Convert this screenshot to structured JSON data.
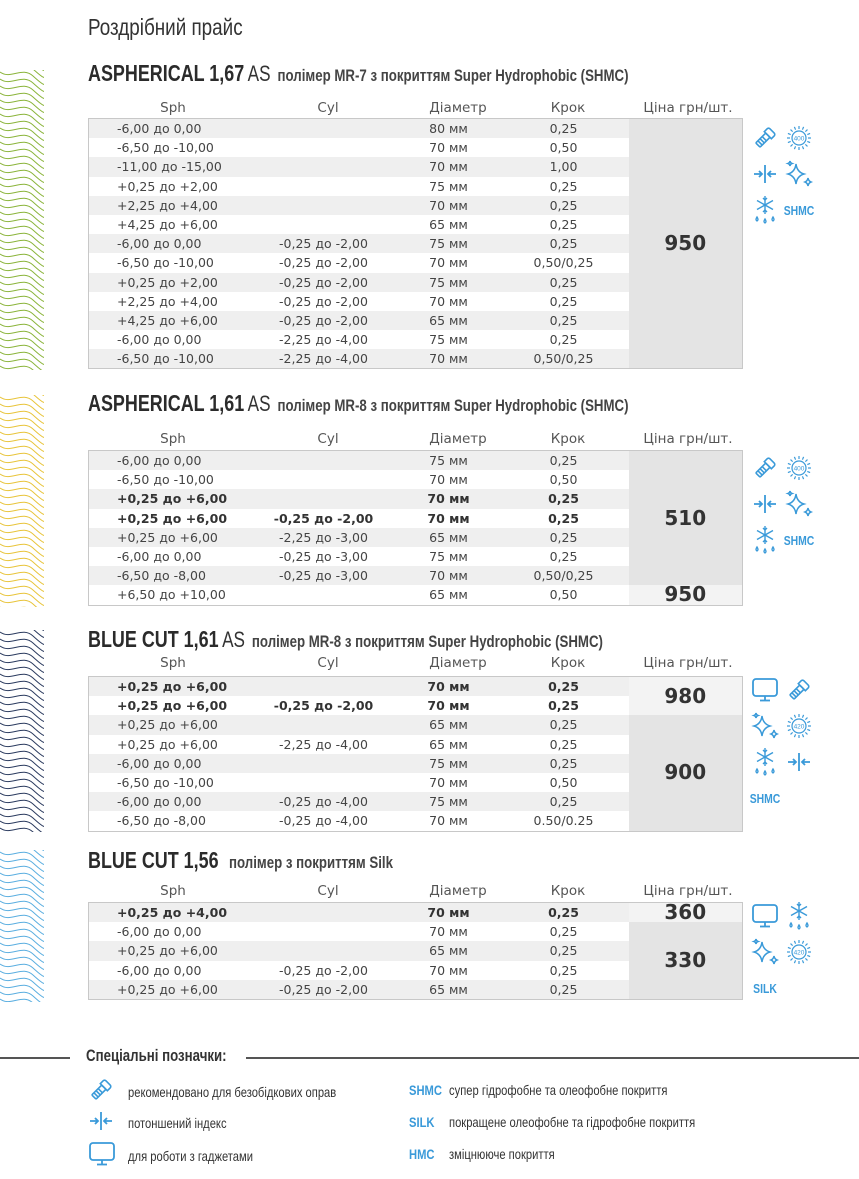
{
  "doc_title": "Роздрібний прайс",
  "columns": {
    "sph": "Sph",
    "cyl": "Cyl",
    "diam": "Діаметр",
    "step": "Крок",
    "price": "Ціна грн/шт."
  },
  "colors": {
    "accent": "#3a9ad9",
    "waves": [
      "#8ab43a",
      "#e8c43a",
      "#2a3a5e",
      "#5aaee0"
    ]
  },
  "sections": [
    {
      "name": "ASPHERICAL 1,67",
      "index": "AS",
      "desc": "полімер MR-7 з покриттям Super Hydrophobic (SHMC)",
      "rows": [
        {
          "sph": "-6,00 до 0,00",
          "cyl": "",
          "diam": "80 мм",
          "step": "0,25"
        },
        {
          "sph": "-6,50 до -10,00",
          "cyl": "",
          "diam": "70 мм",
          "step": "0,50"
        },
        {
          "sph": "-11,00 до -15,00",
          "cyl": "",
          "diam": "70 мм",
          "step": "1,00"
        },
        {
          "sph": "+0,25 до +2,00",
          "cyl": "",
          "diam": "75 мм",
          "step": "0,25"
        },
        {
          "sph": "+2,25 до +4,00",
          "cyl": "",
          "diam": "70 мм",
          "step": "0,25"
        },
        {
          "sph": "+4,25 до +6,00",
          "cyl": "",
          "diam": "65 мм",
          "step": "0,25"
        },
        {
          "sph": "-6,00 до 0,00",
          "cyl": "-0,25  до -2,00",
          "diam": "75 мм",
          "step": "0,25"
        },
        {
          "sph": "-6,50 до -10,00",
          "cyl": "-0,25  до -2,00",
          "diam": "70 мм",
          "step": "0,50/0,25"
        },
        {
          "sph": "+0,25 до +2,00",
          "cyl": "-0,25  до -2,00",
          "diam": "75 мм",
          "step": "0,25"
        },
        {
          "sph": "+2,25 до +4,00",
          "cyl": "-0,25  до -2,00",
          "diam": "70 мм",
          "step": "0,25"
        },
        {
          "sph": "+4,25 до +6,00",
          "cyl": "-0,25  до -2,00",
          "diam": "65 мм",
          "step": "0,25"
        },
        {
          "sph": "-6,00 до 0,00",
          "cyl": "-2,25  до -4,00",
          "diam": "75 мм",
          "step": "0,25"
        },
        {
          "sph": "-6,50 до -10,00",
          "cyl": "-2,25  до -4,00",
          "diam": "70 мм",
          "step": "0,50/0,25"
        }
      ],
      "prices": [
        {
          "value": "950",
          "span": 13,
          "shade": "dark"
        }
      ],
      "icons": [
        "screw-icon",
        "uv400-icon",
        "thin-index-icon",
        "sparkle-icon",
        "snowflake-drops-icon",
        "SHMC"
      ]
    },
    {
      "name": "ASPHERICAL 1,61",
      "index": "AS",
      "desc": "полімер MR-8 з покриттям Super Hydrophobic (SHMC)",
      "rows": [
        {
          "sph": "-6,00 до 0,00",
          "cyl": "",
          "diam": "75 мм",
          "step": "0,25"
        },
        {
          "sph": "-6,50 до -10,00",
          "cyl": "",
          "diam": "70 мм",
          "step": "0,50"
        },
        {
          "sph": "+0,25 до +6,00",
          "cyl": "",
          "diam": "70 мм",
          "step": "0,25",
          "bold": true
        },
        {
          "sph": "+0,25 до +6,00",
          "cyl": "-0,25  до -2,00",
          "diam": "70 мм",
          "step": "0,25",
          "bold": true
        },
        {
          "sph": "+0,25 до +6,00",
          "cyl": "-2,25  до -3,00",
          "diam": "65 мм",
          "step": "0,25"
        },
        {
          "sph": "-6,00 до 0,00",
          "cyl": "-0,25  до -3,00",
          "diam": "75 мм",
          "step": "0,25"
        },
        {
          "sph": "-6,50 до -8,00",
          "cyl": "-0,25  до -3,00",
          "diam": "70 мм",
          "step": "0,50/0,25"
        },
        {
          "sph": "+6,50 до +10,00",
          "cyl": "",
          "diam": "65 мм",
          "step": "0,50"
        }
      ],
      "prices": [
        {
          "value": "510",
          "span": 7,
          "shade": "dark"
        },
        {
          "value": "950",
          "span": 1,
          "shade": "light"
        }
      ],
      "icons": [
        "screw-icon",
        "uv400-icon",
        "thin-index-icon",
        "sparkle-icon",
        "snowflake-drops-icon",
        "SHMC"
      ]
    },
    {
      "name": "BLUE CUT 1,61",
      "index": "AS",
      "desc": "полімер MR-8 з покриттям Super Hydrophobic (SHMC)",
      "rows": [
        {
          "sph": "+0,25 до +6,00",
          "cyl": "",
          "diam": "70 мм",
          "step": "0,25",
          "bold": true
        },
        {
          "sph": "+0,25 до +6,00",
          "cyl": "-0,25  до -2,00",
          "diam": "70 мм",
          "step": "0,25",
          "bold": true
        },
        {
          "sph": "+0,25 до +6,00",
          "cyl": "",
          "diam": "65 мм",
          "step": "0,25"
        },
        {
          "sph": "+0,25 до +6,00",
          "cyl": "-2,25  до -4,00",
          "diam": "65 мм",
          "step": "0,25"
        },
        {
          "sph": "-6,00 до 0,00",
          "cyl": "",
          "diam": "75 мм",
          "step": "0,25"
        },
        {
          "sph": "-6,50 до -10,00",
          "cyl": "",
          "diam": "70 мм",
          "step": "0,50"
        },
        {
          "sph": "-6,00 до 0,00",
          "cyl": "-0,25  до -4,00",
          "diam": "75 мм",
          "step": "0,25"
        },
        {
          "sph": "-6,50 до -8,00",
          "cyl": "-0,25  до -4,00",
          "diam": "70 мм",
          "step": "0.50/0.25"
        }
      ],
      "prices": [
        {
          "value": "980",
          "span": 2,
          "shade": "light"
        },
        {
          "value": "900",
          "span": 6,
          "shade": "dark"
        }
      ],
      "icons": [
        "monitor-icon",
        "screw-icon",
        "sparkle-icon",
        "uv420-icon",
        "snowflake-drops-icon",
        "thin-index-icon",
        "SHMC"
      ]
    },
    {
      "name": "BLUE CUT 1,56",
      "index": "",
      "desc": "полімер з покриттям Silk",
      "rows": [
        {
          "sph": "+0,25 до +4,00",
          "cyl": "",
          "diam": "70 мм",
          "step": "0,25",
          "bold": true
        },
        {
          "sph": "-6,00 до 0,00",
          "cyl": "",
          "diam": "70 мм",
          "step": "0,25"
        },
        {
          "sph": "+0,25 до +6,00",
          "cyl": "",
          "diam": "65 мм",
          "step": "0,25"
        },
        {
          "sph": "-6,00 до 0,00",
          "cyl": "-0,25  до -2,00",
          "diam": "70 мм",
          "step": "0,25"
        },
        {
          "sph": "+0,25 до +6,00",
          "cyl": "-0,25  до -2,00",
          "diam": "65 мм",
          "step": "0,25"
        }
      ],
      "prices": [
        {
          "value": "360",
          "span": 1,
          "shade": "light"
        },
        {
          "value": "330",
          "span": 4,
          "shade": "dark"
        }
      ],
      "icons": [
        "monitor-icon",
        "snowflake-drops-icon",
        "sparkle-icon",
        "uv420-icon",
        "SILK"
      ]
    }
  ],
  "legend": {
    "title": "Спеціальні позначки:",
    "icon_items": [
      {
        "icon": "screw-icon",
        "text": "рекомендовано для безобідкових оправ"
      },
      {
        "icon": "thin-index-icon",
        "text": "потоншений індекс"
      },
      {
        "icon": "monitor-icon",
        "text": "для роботи з гаджетами"
      }
    ],
    "code_items": [
      {
        "code": "SHMC",
        "text": "супер гідрофобне та олеофобне покриття"
      },
      {
        "code": "SILK",
        "text": "покращене олеофобне та гідрофобне покриття"
      },
      {
        "code": "HMC",
        "text": "зміцнююче покриття"
      }
    ]
  }
}
